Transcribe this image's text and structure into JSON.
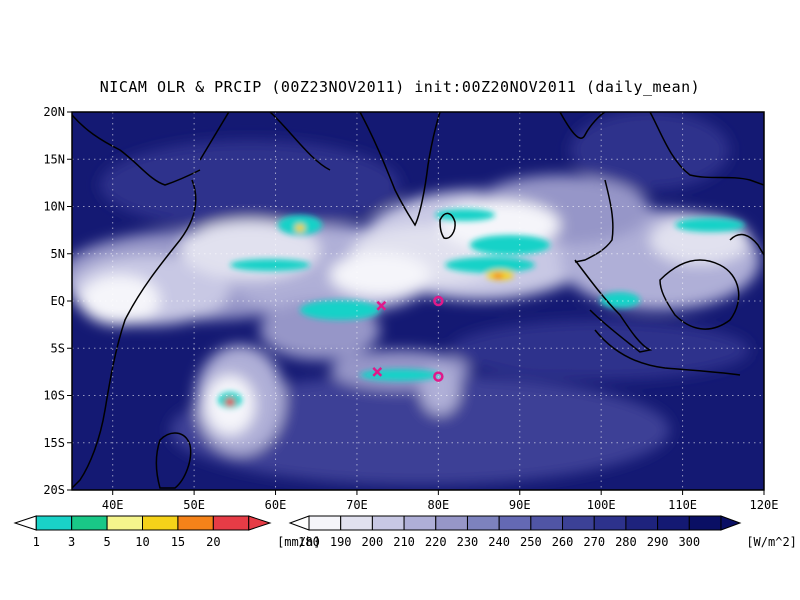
{
  "title": "NICAM OLR & PRCIP (00Z23NOV2011) init:00Z20NOV2011 (daily_mean)",
  "map": {
    "lon_range": [
      35,
      120
    ],
    "lat_range": [
      -20,
      20
    ],
    "lon_ticks": [
      {
        "value": 40,
        "label": "40E"
      },
      {
        "value": 50,
        "label": "50E"
      },
      {
        "value": 60,
        "label": "60E"
      },
      {
        "value": 70,
        "label": "70E"
      },
      {
        "value": 80,
        "label": "80E"
      },
      {
        "value": 90,
        "label": "90E"
      },
      {
        "value": 100,
        "label": "100E"
      },
      {
        "value": 110,
        "label": "110E"
      },
      {
        "value": 120,
        "label": "120E"
      }
    ],
    "lat_ticks": [
      {
        "value": 20,
        "label": "20N"
      },
      {
        "value": 15,
        "label": "15N"
      },
      {
        "value": 10,
        "label": "10N"
      },
      {
        "value": 5,
        "label": "5N"
      },
      {
        "value": 0,
        "label": "EQ"
      },
      {
        "value": -5,
        "label": "5S"
      },
      {
        "value": -10,
        "label": "10S"
      },
      {
        "value": -15,
        "label": "15S"
      },
      {
        "value": -20,
        "label": "20S"
      }
    ],
    "markers": [
      {
        "type": "x",
        "lon": 73,
        "lat": -0.5,
        "color": "#e0198a"
      },
      {
        "type": "x",
        "lon": 72.5,
        "lat": -7.5,
        "color": "#e0198a"
      },
      {
        "type": "circle",
        "lon": 80,
        "lat": 0,
        "color": "#e0198a"
      },
      {
        "type": "circle",
        "lon": 80,
        "lat": -8,
        "color": "#e0198a"
      }
    ]
  },
  "precip_legend": {
    "unit": "[mm/h]",
    "colors": [
      "#19d2c8",
      "#19c887",
      "#f5f58c",
      "#f5d219",
      "#f58219",
      "#e63c46"
    ],
    "labels": [
      "1",
      "3",
      "5",
      "10",
      "15",
      "20"
    ]
  },
  "olr_legend": {
    "unit": "[W/m^2]",
    "colors": [
      "#f5f5fa",
      "#e1e1ef",
      "#c8c8e4",
      "#afafd7",
      "#9696c8",
      "#7d82be",
      "#6469b4",
      "#5055a5",
      "#3c4196",
      "#2d328c",
      "#1e237d",
      "#141973",
      "#0a0f64"
    ],
    "labels": [
      "180",
      "190",
      "200",
      "210",
      "220",
      "230",
      "240",
      "250",
      "260",
      "270",
      "280",
      "290",
      "300"
    ]
  }
}
